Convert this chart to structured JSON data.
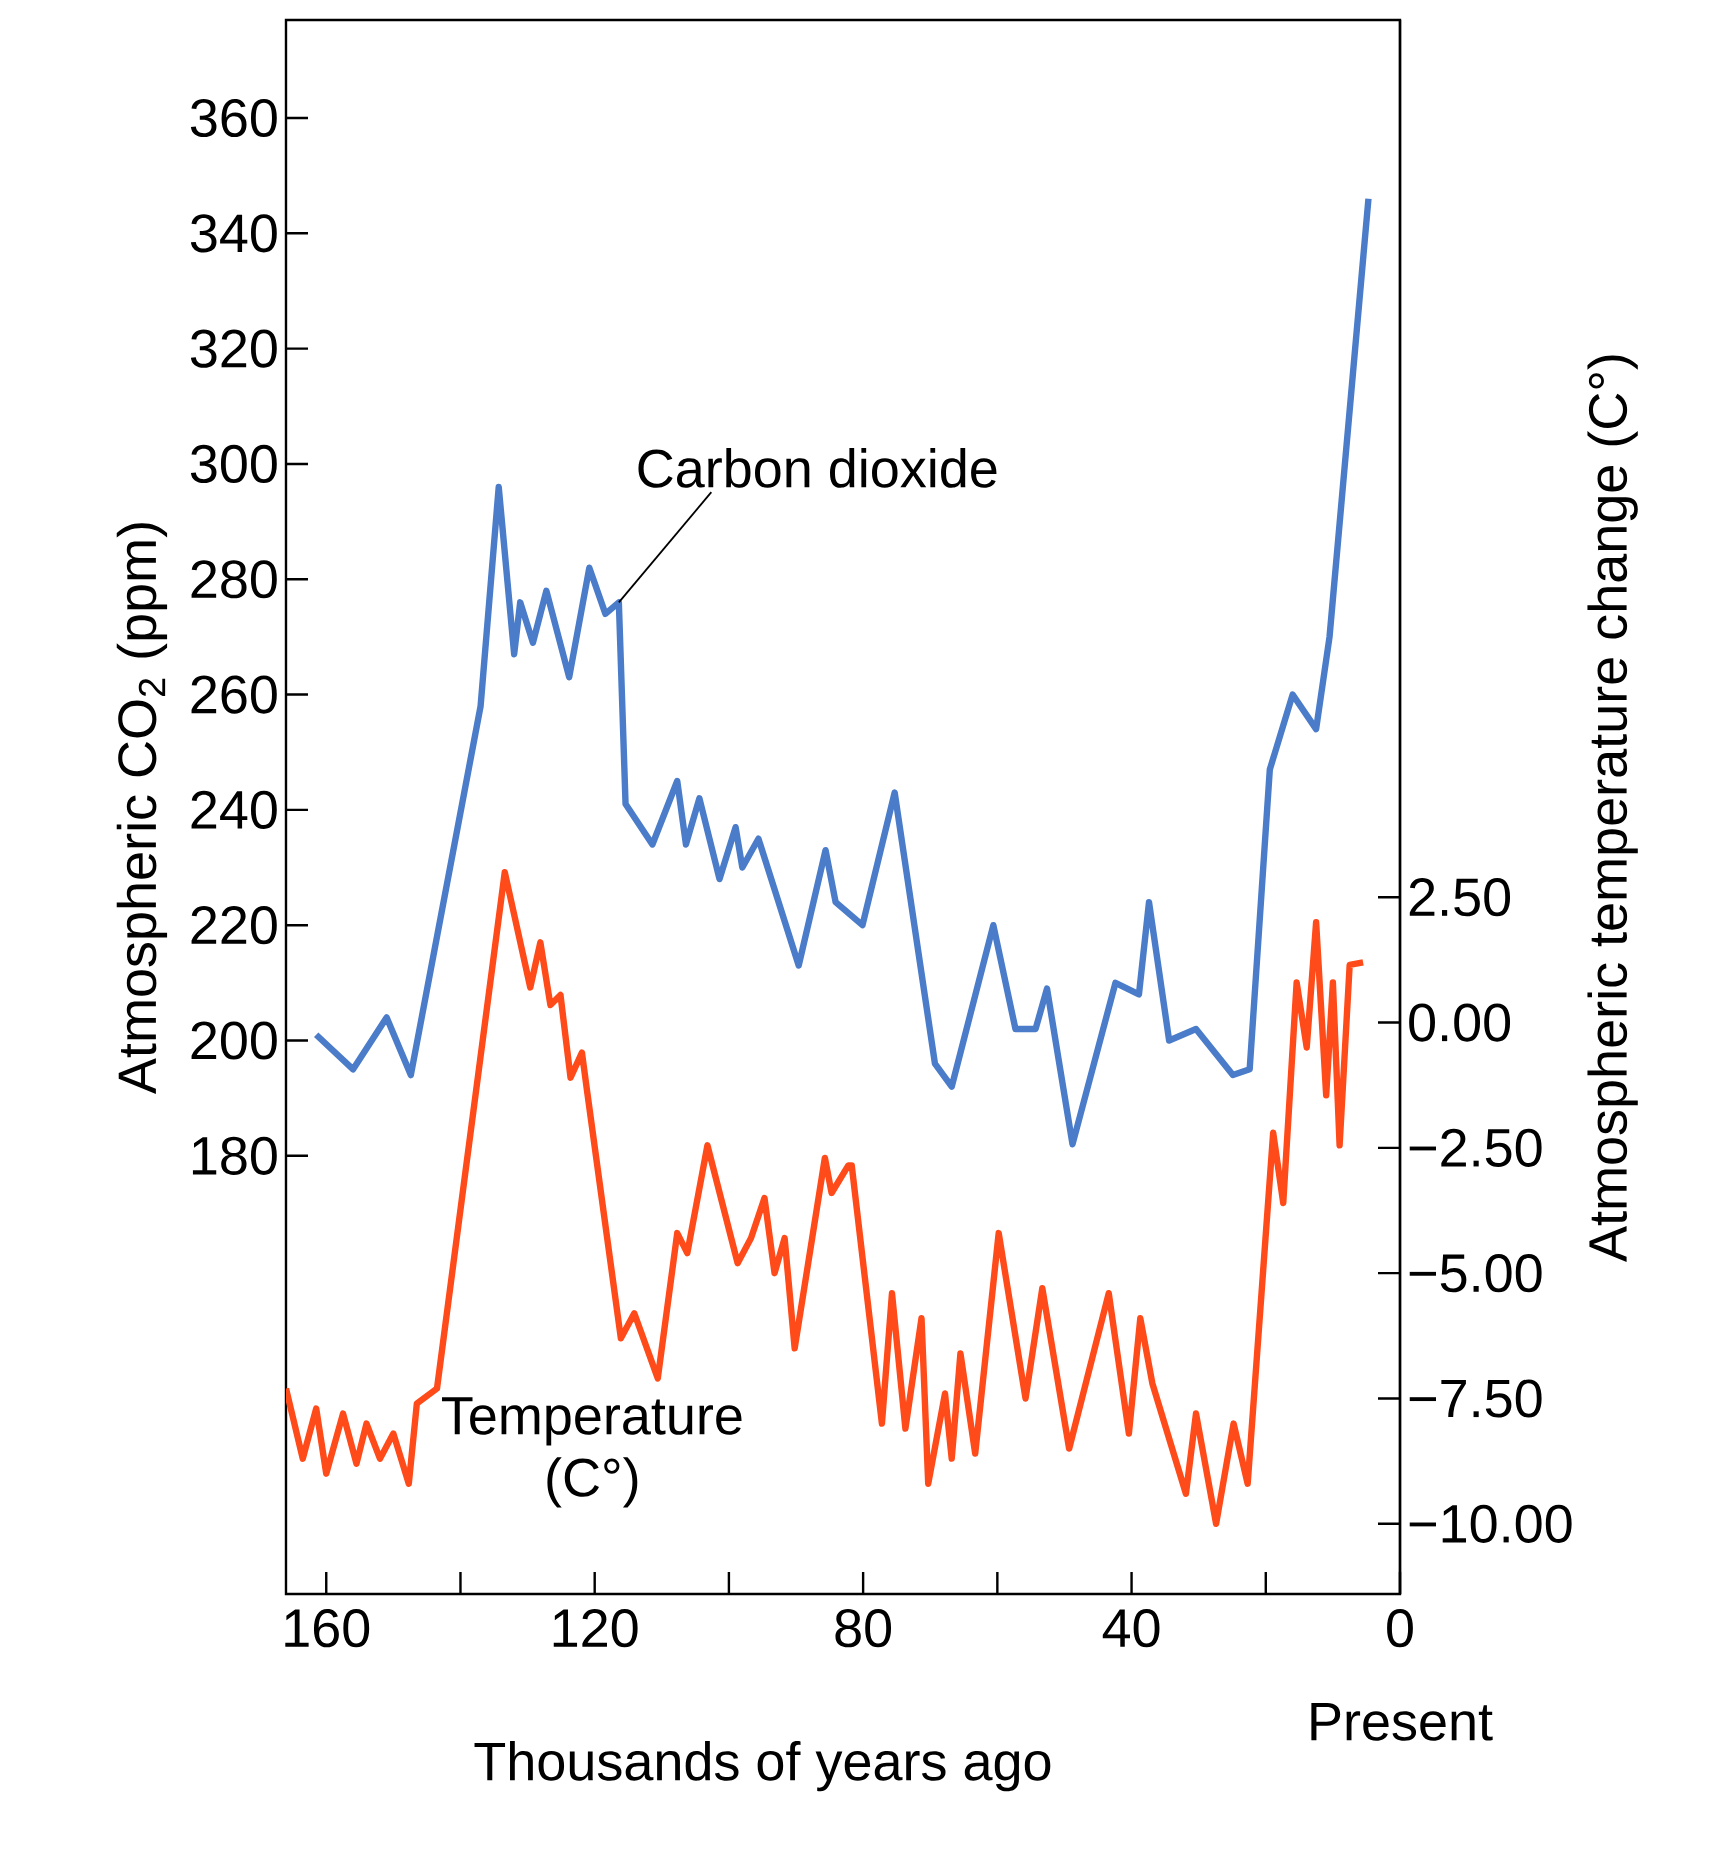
{
  "chart_data": {
    "type": "line",
    "xlabel": "Thousands of years ago",
    "ylabel": "Atmospheric CO$_{2}$ (ppm)",
    "y2label": "Atmospheric temperature change (C°)",
    "xlim": [
      166,
      0
    ],
    "xticks": [
      160,
      {
        "value": 140,
        "label": null
      },
      120,
      {
        "value": 100,
        "label": null
      },
      80,
      {
        "value": 60,
        "label": null
      },
      40,
      {
        "value": 20,
        "label": null
      },
      0
    ],
    "ylim": [
      104,
      377
    ],
    "yticks": [
      180,
      200,
      220,
      240,
      260,
      280,
      300,
      320,
      340,
      360
    ],
    "y2lim": [
      -11.4,
      20
    ],
    "y2ticks": [
      {
        "value": 2.5,
        "label": "2.50"
      },
      {
        "value": 0,
        "label": "0.00"
      },
      {
        "value": -2.5,
        "label": "−2.50"
      },
      {
        "value": -5,
        "label": "−5.00"
      },
      {
        "value": -7.5,
        "label": "−7.50"
      },
      {
        "value": -10,
        "label": "−10.00"
      }
    ],
    "annotations": [
      "Present"
    ],
    "series": [
      {
        "name": "Carbon dioxide",
        "color": "#4a7cc9",
        "x": [
          161.5,
          156,
          151,
          147.4,
          137,
          134.3,
          132,
          131.1,
          129.2,
          127.2,
          123.8,
          120.8,
          118.4,
          116.4,
          115.4,
          111.4,
          107.7,
          106.4,
          104.4,
          101.4,
          99,
          98,
          95.6,
          89.6,
          85.6,
          84.1,
          80.1,
          75.3,
          69.3,
          66.8,
          60.6,
          57.3,
          54.3,
          52.6,
          48.8,
          42.4,
          38.9,
          37.4,
          34.4,
          30.4,
          24.9,
          22.4,
          19.4,
          16,
          12.5,
          10.5,
          4.7
        ],
        "values": [
          201,
          195,
          204,
          194,
          258,
          296,
          267,
          276,
          269,
          278,
          263,
          282,
          274,
          276,
          241,
          234,
          245,
          234,
          242,
          228,
          237,
          230,
          235,
          213,
          233,
          224,
          220,
          243,
          196,
          192,
          220,
          202,
          202,
          209,
          182,
          210,
          208,
          224,
          200,
          202,
          194,
          195,
          247,
          260,
          254,
          270,
          346
        ]
      },
      {
        "name": "Temperature (C°)",
        "color": "#ff4a1a",
        "axis": "y2",
        "x": [
          166,
          163.5,
          161.5,
          160,
          157.5,
          155.5,
          154,
          152,
          150,
          147.7,
          146.5,
          143.5,
          133.4,
          129.6,
          128.1,
          126.6,
          125.1,
          123.6,
          121.9,
          121.1,
          116.1,
          114.1,
          110.6,
          107.7,
          106.2,
          103.2,
          98.7,
          96.7,
          94.7,
          93.2,
          91.7,
          90.2,
          85.7,
          84.7,
          82.2,
          81.7,
          77.2,
          75.7,
          73.7,
          71.3,
          70.3,
          67.8,
          66.8,
          65.5,
          63.3,
          59.8,
          55.8,
          53.3,
          49.3,
          43.4,
          40.4,
          38.7,
          36.9,
          31.9,
          30.4,
          27.4,
          24.8,
          22.7,
          18.9,
          17.4,
          15.4,
          13.9,
          12.5,
          11,
          10,
          9,
          7.5,
          5.5
        ],
        "values": [
          -7.3,
          -8.7,
          -7.7,
          -9.0,
          -7.8,
          -8.8,
          -8.0,
          -8.7,
          -8.2,
          -9.2,
          -7.6,
          -7.3,
          3.0,
          0.7,
          1.6,
          0.35,
          0.55,
          -1.1,
          -0.6,
          -1.4,
          -6.3,
          -5.8,
          -7.1,
          -4.2,
          -4.6,
          -2.45,
          -4.8,
          -4.3,
          -3.5,
          -5.0,
          -4.3,
          -6.5,
          -2.7,
          -3.4,
          -2.85,
          -2.85,
          -8.0,
          -5.4,
          -8.1,
          -5.9,
          -9.2,
          -7.4,
          -8.7,
          -6.6,
          -8.6,
          -4.2,
          -7.5,
          -5.3,
          -8.5,
          -5.4,
          -8.2,
          -5.9,
          -7.2,
          -9.4,
          -7.8,
          -10.0,
          -8.0,
          -9.2,
          -2.2,
          -3.6,
          0.8,
          -0.5,
          2.0,
          -1.45,
          0.8,
          -2.45,
          1.15,
          1.2
        ]
      }
    ]
  }
}
